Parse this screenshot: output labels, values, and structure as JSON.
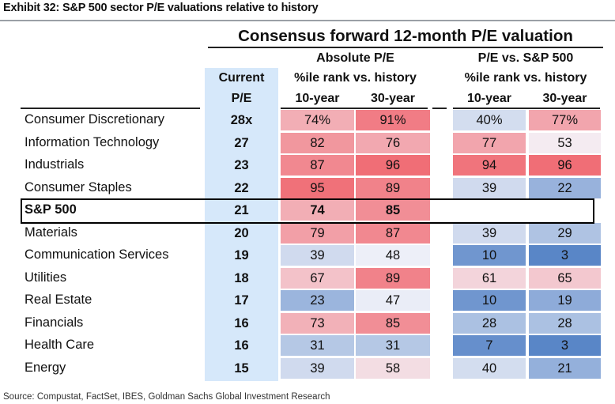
{
  "exhibit_title": "Exhibit 32: S&P 500 sector P/E valuations relative to history",
  "main_title": "Consensus forward 12-month P/E valuation",
  "group_headers": {
    "absolute": "Absolute P/E",
    "relative": "P/E vs. S&P 500",
    "rank_label": "%ile rank vs. history"
  },
  "current_header": [
    "Current",
    "P/E"
  ],
  "period_headers": [
    "10-year",
    "30-year",
    "10-year",
    "30-year"
  ],
  "source": "Source: Compustat, FactSet, IBES, Goldman Sachs Global Investment Research",
  "colors": {
    "current_bg": "#d6e8fa",
    "high_red": "#f0626b",
    "low_blue": "#4f7fc4",
    "neutral": "#f4f4fa"
  },
  "chart_data": {
    "type": "table",
    "title": "Consensus forward 12-month P/E valuation",
    "columns": [
      "Current P/E",
      "Absolute P/E 10-year",
      "Absolute P/E 30-year",
      "P/E vs. S&P 500 10-year",
      "P/E vs. S&P 500 30-year"
    ],
    "rows": [
      {
        "sector": "Consumer Discretionary",
        "current": "28x",
        "abs10": "74%",
        "abs30": "91%",
        "rel10": "40%",
        "rel30": "77%"
      },
      {
        "sector": "Information Technology",
        "current": "27",
        "abs10": "82",
        "abs30": "76",
        "rel10": "77",
        "rel30": "53"
      },
      {
        "sector": "Industrials",
        "current": "23",
        "abs10": "87",
        "abs30": "96",
        "rel10": "94",
        "rel30": "96"
      },
      {
        "sector": "Consumer Staples",
        "current": "22",
        "abs10": "95",
        "abs30": "89",
        "rel10": "39",
        "rel30": "22"
      },
      {
        "sector": "S&P 500",
        "current": "21",
        "abs10": "74",
        "abs30": "85",
        "rel10": "",
        "rel30": "",
        "highlight": true
      },
      {
        "sector": "Materials",
        "current": "20",
        "abs10": "79",
        "abs30": "87",
        "rel10": "39",
        "rel30": "29"
      },
      {
        "sector": "Communication Services",
        "current": "19",
        "abs10": "39",
        "abs30": "48",
        "rel10": "10",
        "rel30": "3"
      },
      {
        "sector": "Utilities",
        "current": "18",
        "abs10": "67",
        "abs30": "89",
        "rel10": "61",
        "rel30": "65"
      },
      {
        "sector": "Real Estate",
        "current": "17",
        "abs10": "23",
        "abs30": "47",
        "rel10": "10",
        "rel30": "19"
      },
      {
        "sector": "Financials",
        "current": "16",
        "abs10": "73",
        "abs30": "85",
        "rel10": "28",
        "rel30": "28"
      },
      {
        "sector": "Health Care",
        "current": "16",
        "abs10": "31",
        "abs30": "31",
        "rel10": "7",
        "rel30": "3"
      },
      {
        "sector": "Energy",
        "current": "15",
        "abs10": "39",
        "abs30": "58",
        "rel10": "40",
        "rel30": "21"
      }
    ]
  }
}
